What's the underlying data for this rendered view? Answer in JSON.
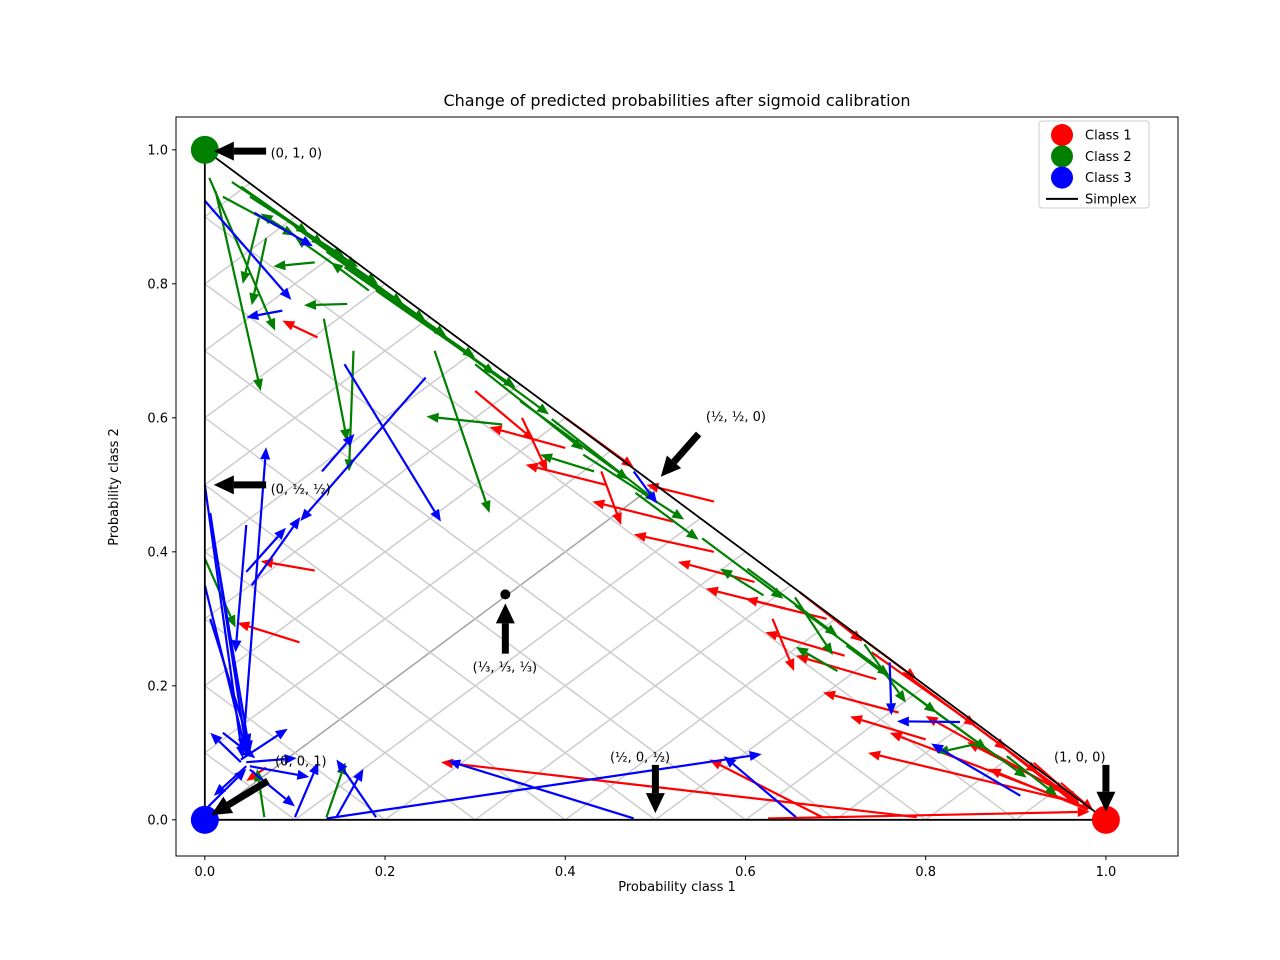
{
  "chart_data": {
    "type": "quiver",
    "title": "Change of predicted probabilities after sigmoid calibration",
    "xlabel": "Probability class 1",
    "ylabel": "Probability class 2",
    "xlim": [
      -0.032,
      1.08
    ],
    "ylim": [
      -0.054,
      1.049
    ],
    "xticks": [
      0,
      0.2,
      0.4,
      0.6,
      0.8,
      1.0
    ],
    "yticks": [
      0,
      0.2,
      0.4,
      0.6,
      0.8,
      1.0
    ],
    "xtick_labels": [
      "0.0",
      "0.2",
      "0.4",
      "0.6",
      "0.8",
      "1.0"
    ],
    "ytick_labels": [
      "0.0",
      "0.2",
      "0.4",
      "0.6",
      "0.8",
      "1.0"
    ],
    "grid": {
      "step": 0.1,
      "color": "#cccccc",
      "center_diagonal_color": "#a3a3a3",
      "on": true
    },
    "simplex": {
      "vertices": [
        [
          0,
          0
        ],
        [
          1,
          0
        ],
        [
          0,
          1
        ]
      ],
      "color": "#000000"
    },
    "legend": {
      "position": "upper right",
      "items": [
        {
          "label": "Class 1",
          "color": "#ff0000",
          "marker": "circle"
        },
        {
          "label": "Class 2",
          "color": "#008000",
          "marker": "circle"
        },
        {
          "label": "Class 3",
          "color": "#0000ff",
          "marker": "circle"
        },
        {
          "label": "Simplex",
          "color": "#000000",
          "marker": "line"
        }
      ]
    },
    "corner_markers": [
      {
        "x": 0,
        "y": 1,
        "color": "#008000",
        "class": "Class 2"
      },
      {
        "x": 0,
        "y": 0,
        "color": "#0000ff",
        "class": "Class 3"
      },
      {
        "x": 1,
        "y": 0,
        "color": "#ff0000",
        "class": "Class 1"
      }
    ],
    "center_point": {
      "x": 0.3335,
      "y": 0.3365,
      "color": "#000000"
    },
    "annotations": [
      {
        "label": "(0, 1, 0)",
        "tx": 0.073,
        "ty": 0.995,
        "anchor": "start",
        "arrow": [
          0.068,
          0.998,
          0.01,
          0.998
        ]
      },
      {
        "label": "(0, ½, ½)",
        "tx": 0.073,
        "ty": 0.494,
        "anchor": "start",
        "arrow": [
          0.068,
          0.5,
          0.01,
          0.5
        ]
      },
      {
        "label": "(½, ½, 0)",
        "tx": 0.556,
        "ty": 0.602,
        "anchor": "start",
        "arrow": [
          0.548,
          0.576,
          0.506,
          0.512
        ]
      },
      {
        "label": "(⅓, ⅓, ⅓)",
        "tx": 0.333,
        "ty": 0.228,
        "anchor": "middle",
        "arrow": [
          0.3335,
          0.248,
          0.3335,
          0.323
        ]
      },
      {
        "label": "(0, 0, 1)",
        "tx": 0.078,
        "ty": 0.088,
        "anchor": "start",
        "arrow": [
          0.07,
          0.058,
          0.007,
          0.007
        ]
      },
      {
        "label": "(½, 0, ½)",
        "tx": 0.483,
        "ty": 0.094,
        "anchor": "middle",
        "arrow": [
          0.5,
          0.082,
          0.5,
          0.01
        ]
      },
      {
        "label": "(1, 0, 0)",
        "tx": 0.971,
        "ty": 0.094,
        "anchor": "middle",
        "arrow": [
          1.0,
          0.082,
          1.0,
          0.012
        ]
      }
    ],
    "series": [
      {
        "name": "Class 1",
        "color": "#ff0000",
        "arrows": [
          [
            0.3,
            0.64,
            0.366,
            0.566
          ],
          [
            0.4,
            0.555,
            0.316,
            0.586
          ],
          [
            0.445,
            0.5,
            0.356,
            0.53
          ],
          [
            0.52,
            0.445,
            0.43,
            0.475
          ],
          [
            0.565,
            0.4,
            0.476,
            0.426
          ],
          [
            0.61,
            0.355,
            0.525,
            0.385
          ],
          [
            0.645,
            0.315,
            0.556,
            0.345
          ],
          [
            0.352,
            0.6,
            0.38,
            0.52
          ],
          [
            0.44,
            0.52,
            0.462,
            0.44
          ],
          [
            0.4,
            0.6,
            0.476,
            0.526
          ],
          [
            0.565,
            0.475,
            0.49,
            0.5
          ],
          [
            0.97,
            0.025,
            0.736,
            0.1
          ],
          [
            0.975,
            0.02,
            0.76,
            0.13
          ],
          [
            0.96,
            0.035,
            0.8,
            0.155
          ],
          [
            0.97,
            0.03,
            0.846,
            0.116
          ],
          [
            0.98,
            0.015,
            0.87,
            0.076
          ],
          [
            0.88,
            0.115,
            0.968,
            0.022
          ],
          [
            0.845,
            0.15,
            0.955,
            0.04
          ],
          [
            0.81,
            0.185,
            0.925,
            0.07
          ],
          [
            0.775,
            0.22,
            0.89,
            0.105
          ],
          [
            0.74,
            0.25,
            0.856,
            0.14
          ],
          [
            0.71,
            0.245,
            0.622,
            0.28
          ],
          [
            0.745,
            0.21,
            0.656,
            0.245
          ],
          [
            0.69,
            0.3,
            0.6,
            0.33
          ],
          [
            0.66,
            0.34,
            0.73,
            0.266
          ],
          [
            0.72,
            0.28,
            0.79,
            0.21
          ],
          [
            0.63,
            0.3,
            0.654,
            0.222
          ],
          [
            0.8,
            0.12,
            0.716,
            0.154
          ],
          [
            0.77,
            0.16,
            0.686,
            0.19
          ],
          [
            0.92,
            0.085,
            0.97,
            0.026
          ],
          [
            0.125,
            0.72,
            0.086,
            0.745
          ],
          [
            0.105,
            0.265,
            0.036,
            0.294
          ],
          [
            0.122,
            0.372,
            0.062,
            0.386
          ],
          [
            0.79,
            0.004,
            0.262,
            0.086
          ],
          [
            0.685,
            0.004,
            0.56,
            0.09
          ],
          [
            0.625,
            0.002,
            0.982,
            0.012
          ],
          [
            0.068,
            0.078,
            0.046,
            0.058
          ],
          [
            0.95,
            0.055,
            0.986,
            0.014
          ]
        ]
      },
      {
        "name": "Class 2",
        "color": "#008000",
        "arrows": [
          [
            0.02,
            0.93,
            0.1,
            0.872
          ],
          [
            0.03,
            0.952,
            0.115,
            0.875
          ],
          [
            0.04,
            0.945,
            0.132,
            0.858
          ],
          [
            0.05,
            0.93,
            0.155,
            0.84
          ],
          [
            0.062,
            0.922,
            0.17,
            0.825
          ],
          [
            0.08,
            0.905,
            0.192,
            0.8
          ],
          [
            0.1,
            0.885,
            0.22,
            0.77
          ],
          [
            0.12,
            0.865,
            0.245,
            0.745
          ],
          [
            0.135,
            0.848,
            0.268,
            0.722
          ],
          [
            0.155,
            0.825,
            0.3,
            0.69
          ],
          [
            0.172,
            0.812,
            0.322,
            0.665
          ],
          [
            0.19,
            0.79,
            0.345,
            0.645
          ],
          [
            0.22,
            0.765,
            0.382,
            0.605
          ],
          [
            0.1,
            0.872,
            0.062,
            0.905
          ],
          [
            0.142,
            0.83,
            0.1,
            0.87
          ],
          [
            0.182,
            0.79,
            0.14,
            0.832
          ],
          [
            0.122,
            0.832,
            0.076,
            0.826
          ],
          [
            0.158,
            0.77,
            0.11,
            0.768
          ],
          [
            0.06,
            0.898,
            0.042,
            0.8
          ],
          [
            0.068,
            0.868,
            0.052,
            0.768
          ],
          [
            0.005,
            0.958,
            0.078,
            0.73
          ],
          [
            0.012,
            0.938,
            0.062,
            0.64
          ],
          [
            0.132,
            0.748,
            0.158,
            0.565
          ],
          [
            0.255,
            0.7,
            0.316,
            0.458
          ],
          [
            0.0,
            0.39,
            0.034,
            0.287
          ],
          [
            0.3,
            0.68,
            0.42,
            0.552
          ],
          [
            0.35,
            0.625,
            0.47,
            0.508
          ],
          [
            0.385,
            0.598,
            0.502,
            0.475
          ],
          [
            0.42,
            0.545,
            0.532,
            0.448
          ],
          [
            0.33,
            0.59,
            0.246,
            0.602
          ],
          [
            0.432,
            0.52,
            0.372,
            0.545
          ],
          [
            0.478,
            0.488,
            0.548,
            0.418
          ],
          [
            0.552,
            0.42,
            0.642,
            0.33
          ],
          [
            0.602,
            0.375,
            0.702,
            0.275
          ],
          [
            0.655,
            0.32,
            0.76,
            0.215
          ],
          [
            0.712,
            0.26,
            0.812,
            0.16
          ],
          [
            0.762,
            0.21,
            0.868,
            0.105
          ],
          [
            0.812,
            0.16,
            0.912,
            0.063
          ],
          [
            0.62,
            0.335,
            0.572,
            0.375
          ],
          [
            0.702,
            0.222,
            0.656,
            0.258
          ],
          [
            0.655,
            0.332,
            0.697,
            0.246
          ],
          [
            0.732,
            0.262,
            0.778,
            0.175
          ],
          [
            0.862,
            0.115,
            0.812,
            0.1
          ],
          [
            0.89,
            0.095,
            0.946,
            0.036
          ],
          [
            0.135,
            0.004,
            0.156,
            0.086
          ],
          [
            0.066,
            0.004,
            0.058,
            0.076
          ],
          [
            0.165,
            0.7,
            0.16,
            0.52
          ]
        ]
      },
      {
        "name": "Class 3",
        "color": "#0000ff",
        "arrows": [
          [
            0.0,
            0.5,
            0.042,
            0.092
          ],
          [
            0.006,
            0.458,
            0.047,
            0.096
          ],
          [
            0.01,
            0.42,
            0.05,
            0.1
          ],
          [
            0.0,
            0.35,
            0.045,
            0.105
          ],
          [
            0.006,
            0.3,
            0.05,
            0.11
          ],
          [
            0.046,
            0.44,
            0.034,
            0.25
          ],
          [
            0.042,
            0.1,
            0.068,
            0.556
          ],
          [
            0.046,
            0.37,
            0.09,
            0.436
          ],
          [
            0.052,
            0.35,
            0.106,
            0.452
          ],
          [
            0.04,
            0.09,
            0.092,
            0.136
          ],
          [
            0.046,
            0.086,
            0.102,
            0.092
          ],
          [
            0.05,
            0.08,
            0.116,
            0.064
          ],
          [
            0.04,
            0.086,
            0.006,
            0.13
          ],
          [
            0.046,
            0.08,
            0.01,
            0.036
          ],
          [
            0.05,
            0.075,
            0.1,
            0.02
          ],
          [
            0.02,
            0.13,
            0.056,
            0.092
          ],
          [
            0.004,
            0.02,
            0.046,
            0.076
          ],
          [
            0.1,
            0.004,
            0.126,
            0.086
          ],
          [
            0.146,
            0.004,
            0.176,
            0.076
          ],
          [
            0.19,
            0.004,
            0.146,
            0.09
          ],
          [
            0.135,
            0.002,
            0.618,
            0.098
          ],
          [
            0.476,
            0.002,
            0.27,
            0.088
          ],
          [
            0.656,
            0.004,
            0.576,
            0.095
          ],
          [
            0.76,
            0.235,
            0.762,
            0.156
          ],
          [
            0.838,
            0.146,
            0.768,
            0.147
          ],
          [
            0.905,
            0.036,
            0.806,
            0.114
          ],
          [
            0.0,
            0.924,
            0.096,
            0.776
          ],
          [
            0.055,
            0.906,
            0.12,
            0.856
          ],
          [
            0.086,
            0.76,
            0.046,
            0.75
          ],
          [
            0.245,
            0.66,
            0.106,
            0.446
          ],
          [
            0.13,
            0.52,
            0.166,
            0.576
          ],
          [
            0.155,
            0.68,
            0.262,
            0.445
          ],
          [
            0.476,
            0.52,
            0.502,
            0.472
          ]
        ]
      }
    ]
  }
}
